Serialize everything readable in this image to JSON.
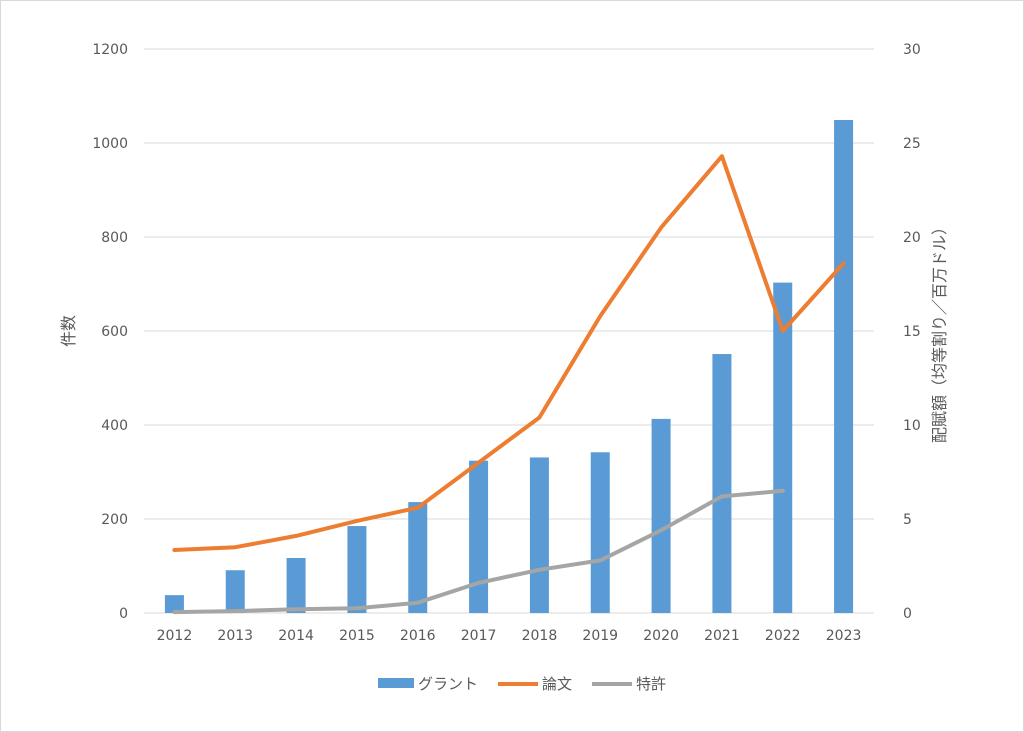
{
  "chart_data": {
    "type": "bar",
    "categories": [
      "2012",
      "2013",
      "2014",
      "2015",
      "2016",
      "2017",
      "2018",
      "2019",
      "2020",
      "2021",
      "2022",
      "2023"
    ],
    "series": [
      {
        "name": "グラント",
        "type": "bar",
        "axis": "left",
        "color": "#5b9bd5",
        "values": [
          38,
          91,
          117,
          185,
          236,
          324,
          331,
          342,
          413,
          551,
          703,
          1049
        ]
      },
      {
        "name": "論文",
        "type": "line",
        "axis": "right",
        "color": "#ed7d31",
        "values": [
          3.35,
          3.5,
          4.1,
          4.9,
          5.6,
          8.0,
          10.4,
          15.8,
          20.5,
          24.3,
          15.0,
          18.6
        ]
      },
      {
        "name": "特許",
        "type": "line",
        "axis": "right",
        "color": "#a5a5a5",
        "values": [
          0.05,
          0.1,
          0.2,
          0.25,
          0.55,
          1.6,
          2.3,
          2.8,
          4.4,
          6.2,
          6.5,
          null
        ]
      }
    ],
    "y_left": {
      "label": "件数",
      "ylim": [
        0,
        1200
      ],
      "ticks": [
        0,
        200,
        400,
        600,
        800,
        1000,
        1200
      ]
    },
    "y_right": {
      "label": "配賦額（均等割り／百万ドル）",
      "ylim": [
        0,
        30
      ],
      "ticks": [
        0,
        5,
        10,
        15,
        20,
        25,
        30
      ]
    },
    "grid": true,
    "legend": "bottom"
  }
}
